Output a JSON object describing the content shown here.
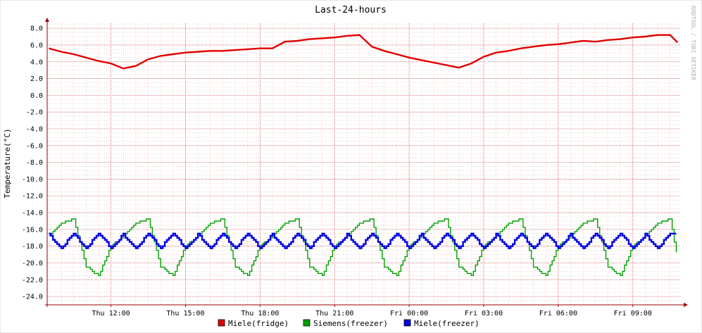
{
  "colors": {
    "background": "#ffffff",
    "canvas": "#ffffff",
    "minor_grid": "#e8b0b0",
    "major_grid": "#d47070",
    "axis": "#990000",
    "text": "#000000",
    "watermark": "#b0b0b0"
  },
  "chart_data": {
    "type": "line",
    "title": "Last-24-hours",
    "ylabel": "Temperature(°C)",
    "xlabel": "",
    "watermark": "RRDTOOL / TOBI OETIKER",
    "ylim": [
      -25.0,
      8.6
    ],
    "xlim": [
      "Thu 09:26",
      "Fri 10:56"
    ],
    "yticks": [
      "8.0",
      "6.0",
      "4.0",
      "2.0",
      "0.0",
      "-2.0",
      "-4.0",
      "-6.0",
      "-8.0",
      "-10.0",
      "-12.0",
      "-14.0",
      "-16.0",
      "-18.0",
      "-20.0",
      "-22.0",
      "-24.0"
    ],
    "xticks": [
      "Thu 12:00",
      "Thu 15:00",
      "Thu 18:00",
      "Thu 21:00",
      "Fri 00:00",
      "Fri 03:00",
      "Fri 06:00",
      "Fri 09:00"
    ],
    "grid": true,
    "legend_position": "bottom",
    "x_hours": [
      "09:30",
      "10:00",
      "10:30",
      "11:00",
      "11:30",
      "12:00",
      "12:30",
      "13:00",
      "13:30",
      "14:00",
      "14:30",
      "15:00",
      "15:30",
      "16:00",
      "16:30",
      "17:00",
      "17:30",
      "18:00",
      "18:30",
      "19:00",
      "19:30",
      "20:00",
      "20:30",
      "21:00",
      "21:30",
      "22:00",
      "22:30",
      "23:00",
      "23:30",
      "00:00",
      "00:30",
      "01:00",
      "01:30",
      "02:00",
      "02:30",
      "03:00",
      "03:30",
      "04:00",
      "04:30",
      "05:00",
      "05:30",
      "06:00",
      "06:30",
      "07:00",
      "07:30",
      "08:00",
      "08:30",
      "09:00",
      "09:30",
      "10:00",
      "10:30",
      "10:48"
    ],
    "series": [
      {
        "name": "Miele(fridge)",
        "color": "#e00000",
        "values": [
          5.6,
          5.2,
          4.9,
          4.5,
          4.1,
          3.8,
          3.2,
          3.5,
          4.3,
          4.7,
          4.9,
          5.1,
          5.2,
          5.3,
          5.3,
          5.4,
          5.5,
          5.6,
          5.6,
          6.4,
          6.5,
          6.7,
          6.8,
          6.9,
          7.1,
          7.2,
          5.8,
          5.3,
          4.9,
          4.5,
          4.2,
          3.9,
          3.6,
          3.3,
          3.8,
          4.6,
          5.1,
          5.3,
          5.6,
          5.8,
          6.0,
          6.1,
          6.3,
          6.5,
          6.4,
          6.6,
          6.7,
          6.9,
          7.0,
          7.2,
          7.2,
          6.3
        ]
      },
      {
        "name": "Siemens(freezer)",
        "color": "#00a000",
        "period_minutes": 100,
        "values": [
          -16.8,
          -15.2,
          -14.8,
          -20.4,
          -21.5,
          -18.0,
          -16.8,
          -15.2,
          -14.8,
          -20.4,
          -21.5,
          -18.0,
          -16.8,
          -15.2,
          -14.8,
          -20.4,
          -21.5,
          -18.0,
          -16.8,
          -15.2,
          -14.8,
          -20.4,
          -21.5,
          -18.0,
          -16.8,
          -15.2,
          -14.8,
          -20.4,
          -21.5,
          -18.0,
          -16.8,
          -15.2,
          -14.8,
          -20.4,
          -21.5,
          -18.0,
          -16.8,
          -15.2,
          -14.8,
          -20.4,
          -21.5,
          -18.0,
          -16.8,
          -15.2,
          -14.8,
          -20.4,
          -21.5,
          -18.0,
          -16.8,
          -15.2,
          -14.8,
          -19.5
        ]
      },
      {
        "name": "Miele(freezer)",
        "color": "#0000e0",
        "period_minutes": 50,
        "values": [
          -16.6,
          -18.2,
          -16.5,
          -18.3,
          -16.4,
          -18.2,
          -16.6,
          -18.3,
          -16.5,
          -18.2,
          -16.4,
          -18.3,
          -16.6,
          -18.2,
          -16.5,
          -18.3,
          -16.4,
          -18.2,
          -16.6,
          -18.3,
          -16.5,
          -18.2,
          -16.4,
          -18.3,
          -16.6,
          -18.2,
          -16.5,
          -18.3,
          -16.4,
          -18.2,
          -16.6,
          -18.3,
          -16.5,
          -18.2,
          -16.4,
          -18.3,
          -16.6,
          -18.2,
          -16.5,
          -18.3,
          -16.4,
          -18.2,
          -16.6,
          -18.3,
          -16.5,
          -18.2,
          -16.4,
          -18.3,
          -16.6,
          -18.2,
          -16.5,
          -16.6
        ]
      }
    ]
  }
}
